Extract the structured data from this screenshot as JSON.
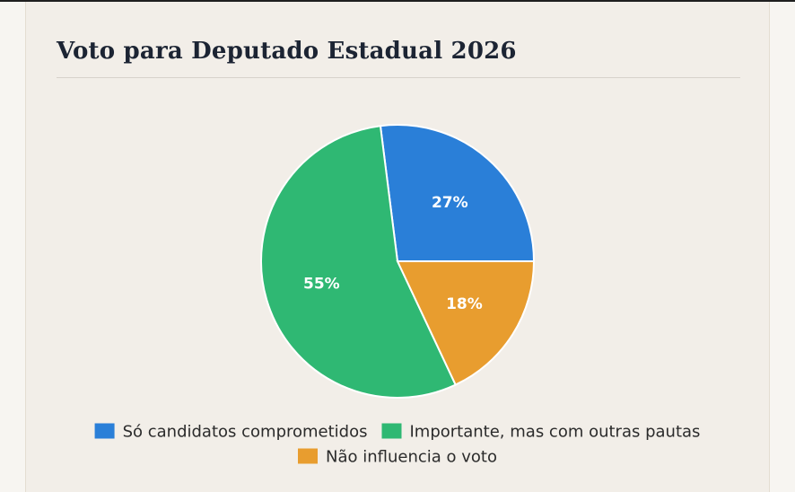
{
  "chart_data": {
    "type": "pie",
    "title": "Voto para Deputado Estadual 2026",
    "categories": [
      "Só candidatos comprometidos",
      "Importante, mas com outras pautas",
      "Não influencia o voto"
    ],
    "values": [
      27,
      55,
      18
    ],
    "data_labels": [
      "27%",
      "55%",
      "18%"
    ],
    "colors": [
      "#2a7fd8",
      "#2fb873",
      "#e89d2f"
    ],
    "legend_position": "bottom",
    "grid": false
  }
}
